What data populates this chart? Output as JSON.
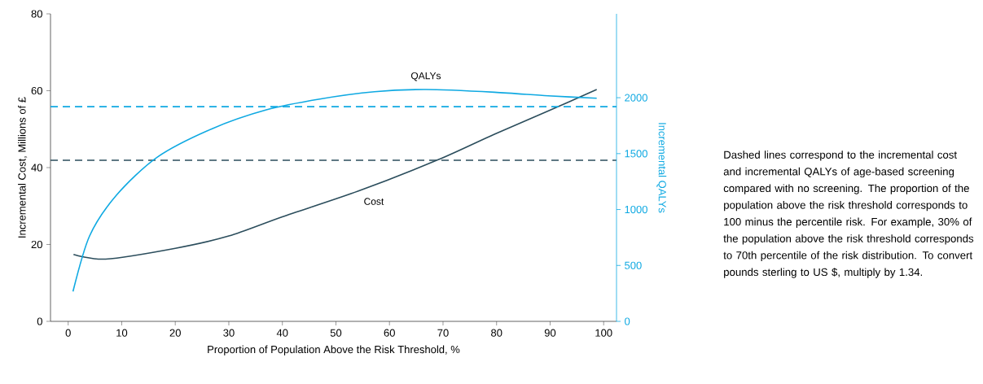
{
  "chart_data": {
    "type": "line",
    "xlabel": "Proportion of Population Above the Risk Threshold, %",
    "ylabel": "Incremental Cost, Millions of £",
    "y2label": "Incremental QALYs",
    "xlim": [
      -3.3,
      102.4
    ],
    "xticks": [
      0,
      10,
      20,
      30,
      40,
      50,
      60,
      70,
      80,
      90,
      100
    ],
    "ylim": [
      0,
      80
    ],
    "yticks": [
      0,
      20,
      40,
      60,
      80
    ],
    "y2lim": [
      0,
      2750
    ],
    "y2ticks": [
      0,
      500,
      1000,
      1500,
      2000
    ],
    "marker": "none",
    "series": [
      {
        "name": "Cost",
        "color": "#2b4d5c",
        "x": [
          1,
          7,
          20,
          30,
          40,
          54.2,
          69,
          79.6,
          89.6,
          98.7
        ],
        "values": [
          17.4,
          16.2,
          19.0,
          22.2,
          27.2,
          33.9,
          42.0,
          48.7,
          54.7,
          60.3
        ]
      },
      {
        "name": "QALYs",
        "color": "#0fa9e2",
        "axis": "y2",
        "x": [
          0.9,
          4.0,
          9.0,
          16.6,
          26.8,
          37,
          47,
          57.2,
          66.8,
          79.6,
          89.6,
          98.7
        ],
        "values": [
          267,
          764,
          1127,
          1467,
          1721,
          1891,
          1988,
          2053,
          2073,
          2049,
          2017,
          1995
        ]
      }
    ],
    "ref_lines": [
      {
        "axis": "y",
        "value": 41.9,
        "color": "#2b4d5c",
        "line_style": "dashed"
      },
      {
        "axis": "y2",
        "value": 1920,
        "color": "#0fa9e2",
        "line_style": "dashed"
      }
    ],
    "annotations": [
      "Dashed lines correspond to the incremental cost and incremental QALYs of age-based screening compared with no screening. The proportion of the population above the risk threshold corresponds to 100 minus the percentile risk. For example, 30% of the population above the risk threshold corresponds to 70th percentile of the risk distribution. To convert pounds sterling to US $, multiply by 1.34."
    ]
  }
}
